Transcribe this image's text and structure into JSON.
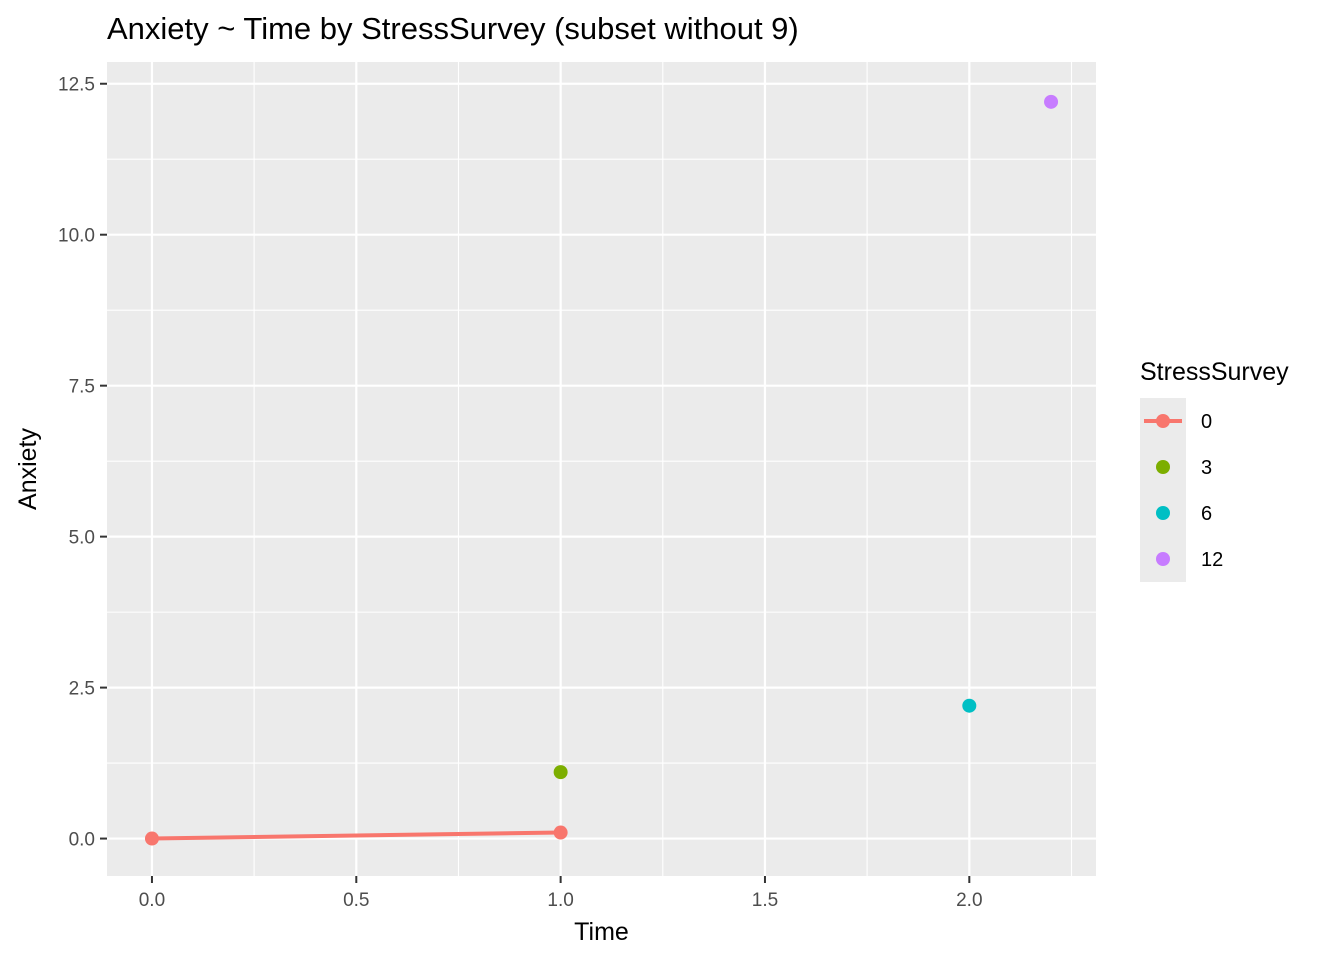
{
  "chart_data": {
    "type": "line",
    "title": "Anxiety ~ Time by StressSurvey (subset without 9)",
    "xlabel": "Time",
    "ylabel": "Anxiety",
    "xlim": [
      -0.11,
      2.31
    ],
    "ylim": [
      -0.62,
      12.86
    ],
    "x_ticks": [
      0.0,
      0.5,
      1.0,
      1.5,
      2.0
    ],
    "x_tick_labels": [
      "0.0",
      "0.5",
      "1.0",
      "1.5",
      "2.0"
    ],
    "y_ticks": [
      0.0,
      2.5,
      5.0,
      7.5,
      10.0,
      12.5
    ],
    "y_tick_labels": [
      "0.0",
      "2.5",
      "5.0",
      "7.5",
      "10.0",
      "12.5"
    ],
    "grid": true,
    "legend": {
      "title": "StressSurvey",
      "placement": "right"
    },
    "series": [
      {
        "name": "0",
        "color": "#f8766d",
        "line": true,
        "points": [
          {
            "x": 0.0,
            "y": 0.0
          },
          {
            "x": 1.0,
            "y": 0.1
          }
        ]
      },
      {
        "name": "3",
        "color": "#7cae00",
        "line": false,
        "points": [
          {
            "x": 1.0,
            "y": 1.1
          }
        ]
      },
      {
        "name": "6",
        "color": "#00bfc4",
        "line": false,
        "points": [
          {
            "x": 2.0,
            "y": 2.2
          }
        ]
      },
      {
        "name": "12",
        "color": "#c77cff",
        "line": false,
        "points": [
          {
            "x": 2.2,
            "y": 12.2
          }
        ]
      }
    ]
  }
}
